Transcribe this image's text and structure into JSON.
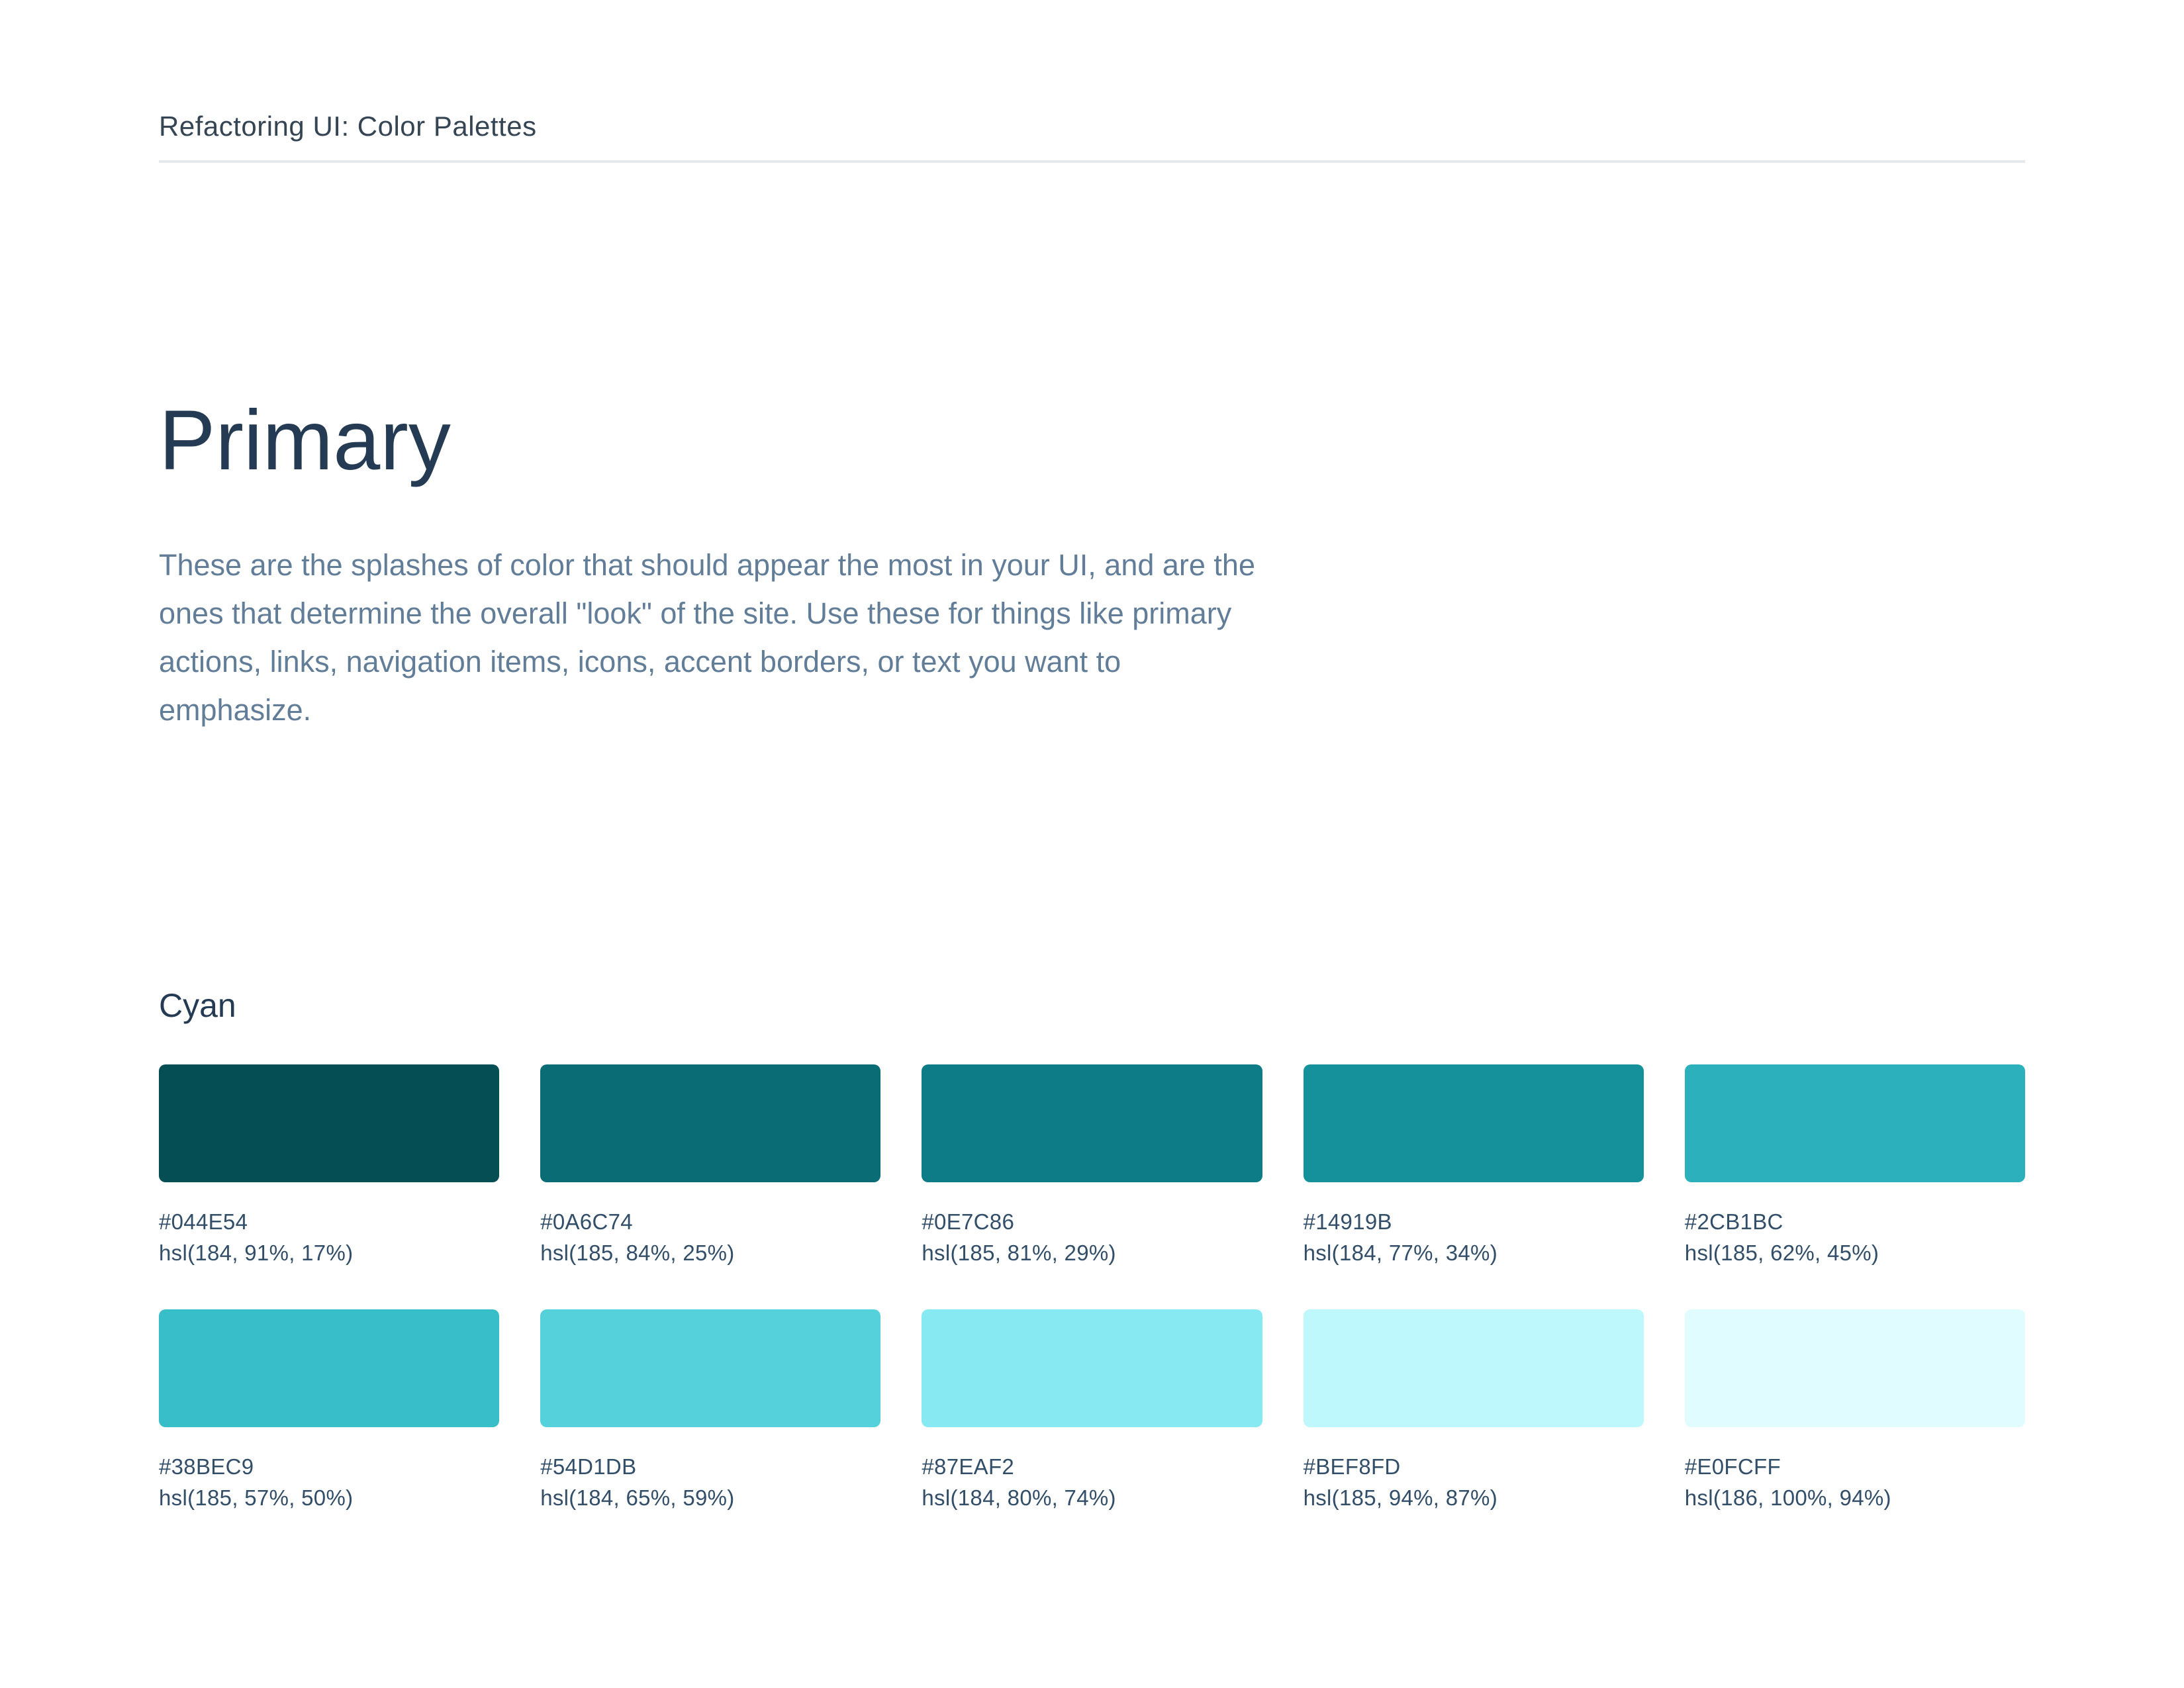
{
  "page": {
    "header": {
      "title": "Refactoring UI: Color Palettes"
    },
    "section": {
      "title": "Primary",
      "description": "These are the splashes of color that should appear the most in your UI, and are the ones that determine the overall \"look\" of the site. Use these for things like primary actions, links, navigation items, icons, accent borders, or text you want to emphasize."
    },
    "palette": {
      "name": "Cyan",
      "swatches": [
        {
          "hex": "#044E54",
          "hsl": "hsl(184, 91%, 17%)"
        },
        {
          "hex": "#0A6C74",
          "hsl": "hsl(185, 84%, 25%)"
        },
        {
          "hex": "#0E7C86",
          "hsl": "hsl(185, 81%, 29%)"
        },
        {
          "hex": "#14919B",
          "hsl": "hsl(184, 77%, 34%)"
        },
        {
          "hex": "#2CB1BC",
          "hsl": "hsl(185, 62%, 45%)"
        },
        {
          "hex": "#38BEC9",
          "hsl": "hsl(185, 57%, 50%)"
        },
        {
          "hex": "#54D1DB",
          "hsl": "hsl(184, 65%, 59%)"
        },
        {
          "hex": "#87EAF2",
          "hsl": "hsl(184, 80%, 74%)"
        },
        {
          "hex": "#BEF8FD",
          "hsl": "hsl(185, 94%, 87%)"
        },
        {
          "hex": "#E0FCFF",
          "hsl": "hsl(186, 100%, 94%)"
        }
      ]
    },
    "colors": {
      "heading_text": "#243B53",
      "body_text": "#627D98",
      "label_text": "#334E68",
      "header_text": "#364554",
      "divider": "#E5E9ED",
      "background": "#FFFFFF"
    }
  }
}
